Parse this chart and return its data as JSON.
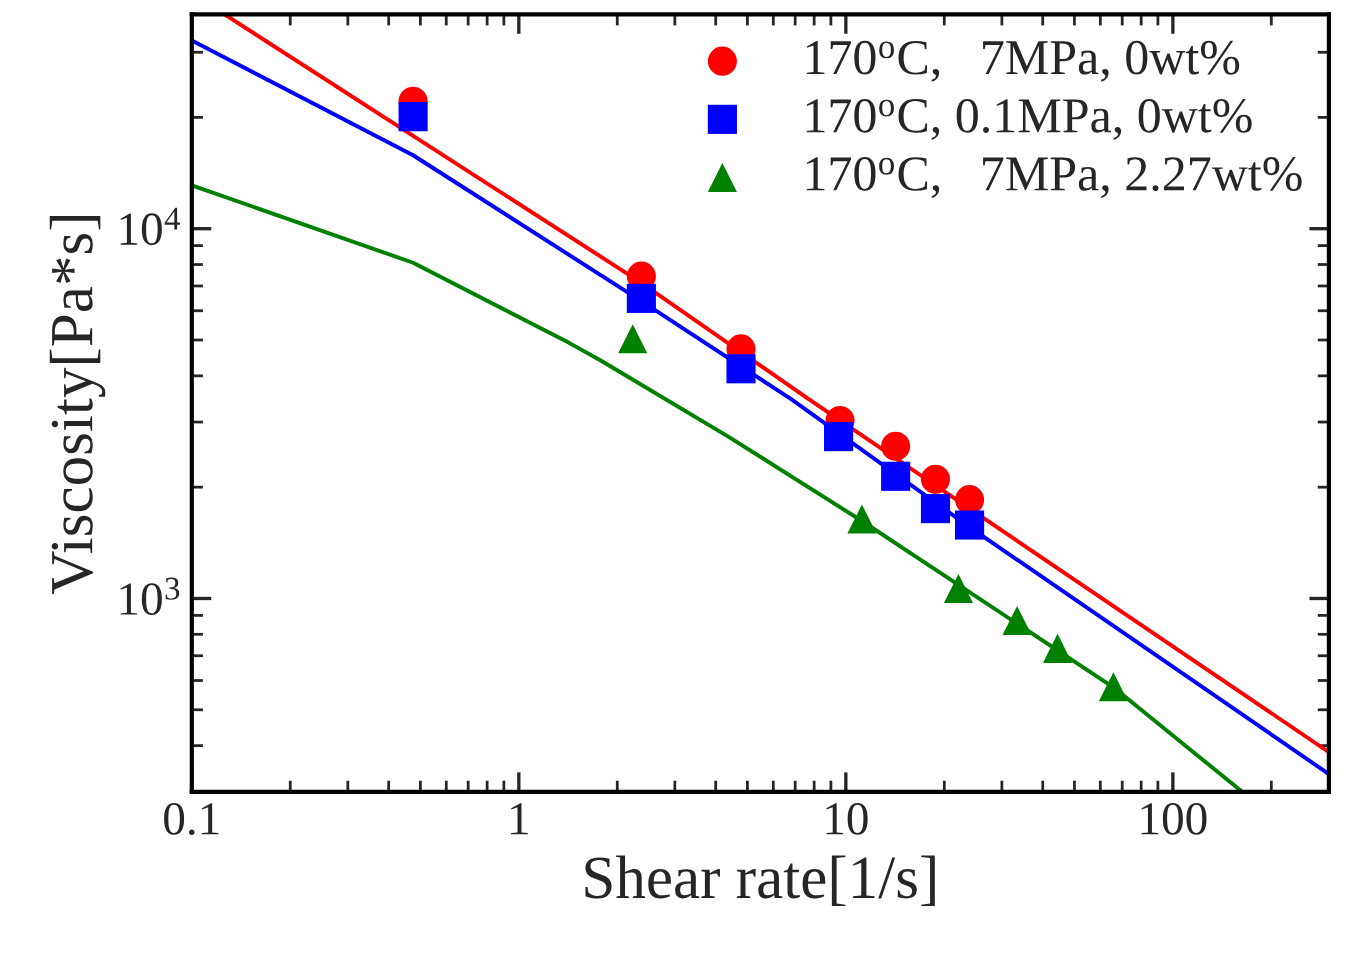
{
  "chart_data": {
    "type": "scatter",
    "xlabel": "Shear rate[1/s]",
    "ylabel": "Viscosity[Pa*s]",
    "log": "xy",
    "xlim": [
      0.1,
      300
    ],
    "ylim": [
      300,
      38000
    ],
    "xticks": [
      0.1,
      1,
      10,
      100
    ],
    "yticks": [
      {
        "value": 1000,
        "label": "10$^{3}$"
      },
      {
        "value": 10000,
        "label": "10$^{4}$"
      }
    ],
    "grid": false,
    "legend": "top right",
    "series": [
      {
        "name": "170$^{o}$C,   7MPa, 0wt%",
        "marker": "circle",
        "color": "#ff0000",
        "x": [
          0.475,
          2.37,
          4.78,
          9.6,
          14.2,
          18.8,
          23.9
        ],
        "values": [
          22100,
          7440,
          4730,
          3030,
          2580,
          2100,
          1850
        ]
      },
      {
        "name": "170$^{o}$C, 0.1MPa, 0wt%",
        "marker": "square",
        "color": "#0000ff",
        "x": [
          0.475,
          2.37,
          4.78,
          9.5,
          14.2,
          18.8,
          23.9
        ],
        "values": [
          20100,
          6480,
          4180,
          2740,
          2140,
          1750,
          1580
        ]
      },
      {
        "name": "170$^{o}$C,   7MPa, 2.27wt%",
        "marker": "triangle",
        "color": "#008000",
        "x": [
          2.23,
          11.2,
          22.1,
          33.4,
          44.4,
          65.8
        ],
        "values": [
          5040,
          1640,
          1064,
          872,
          733,
          577
        ]
      },
      {
        "type": "line",
        "color": "#ff0000",
        "line_style": "solid",
        "x": [
          0.127,
          2.37,
          7.66,
          23.9,
          300
        ],
        "values": [
          37800,
          7140,
          3470,
          1750,
          384
        ]
      },
      {
        "type": "line",
        "color": "#0000ff",
        "line_style": "solid",
        "x": [
          0.1,
          0.475,
          2.37,
          6.77,
          23.9,
          300
        ],
        "values": [
          32300,
          15800,
          6370,
          3470,
          1560,
          335
        ]
      },
      {
        "type": "line",
        "color": "#008000",
        "line_style": "solid",
        "x": [
          0.1,
          0.475,
          1.42,
          1.78,
          4.37,
          11.2,
          65.8,
          163
        ],
        "values": [
          13100,
          8090,
          4920,
          4400,
          2740,
          1620,
          575,
          300
        ]
      }
    ]
  }
}
